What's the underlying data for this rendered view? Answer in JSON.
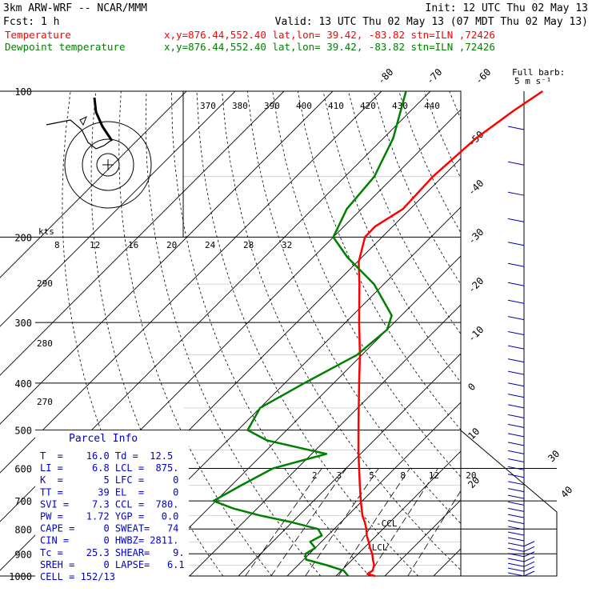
{
  "header": {
    "model": "3km ARW-WRF -- NCAR/MMM",
    "fcst": "Fcst:      1 h",
    "init": "Init: 12 UTC Thu 02 May 13",
    "valid": "Valid: 13 UTC Thu 02 May 13 (07 MDT Thu 02 May 13)",
    "temp_label": "Temperature",
    "dew_label": "Dewpoint temperature",
    "location": "x,y=876.44,552.40   lat,lon= 39.42, -83.82  stn=ILN ,72426"
  },
  "colors": {
    "temperature": "#ff0000",
    "dewpoint": "#008000",
    "axes": "#000000",
    "winds": "#0000aa",
    "parcel": "#0000cc"
  },
  "chart_data": {
    "type": "line",
    "subtype": "skew-T log-p",
    "y_scale": "log",
    "y_range_hPa": [
      1000,
      100
    ],
    "pressure_ticks": [
      "100",
      "200",
      "300",
      "400",
      "500",
      "600",
      "700",
      "800",
      "900",
      "1000"
    ],
    "temperature_ticks": [
      "-80",
      "-70",
      "-60",
      "-50",
      "-40",
      "-30",
      "-20",
      "-10",
      "0",
      "10",
      "20",
      "30",
      "40"
    ],
    "theta_labels": [
      "370",
      "380",
      "390",
      "400",
      "410",
      "420",
      "430",
      "440"
    ],
    "hodograph_speed_label": "kts",
    "hodograph_speed_ticks": [
      "8",
      "12",
      "16",
      "20",
      "24",
      "28",
      "32"
    ],
    "theta_side_labels": [
      "290",
      "280",
      "270"
    ],
    "mixing_ratio_labels": [
      "2",
      "3",
      "5",
      "8",
      "12",
      "20"
    ],
    "level_labels": [
      "CCL",
      "LCL"
    ],
    "wind_key": [
      "Full barb:",
      "5 m s⁻¹"
    ],
    "series": [
      {
        "name": "Temperature",
        "color": "#ff0000",
        "points": [
          [
            1000,
            18.0
          ],
          [
            990,
            16.0
          ],
          [
            975,
            16.4
          ],
          [
            950,
            15.6
          ],
          [
            925,
            14.2
          ],
          [
            900,
            12.9
          ],
          [
            875,
            11.2
          ],
          [
            850,
            9.7
          ],
          [
            825,
            8.0
          ],
          [
            800,
            6.6
          ],
          [
            775,
            4.9
          ],
          [
            750,
            3.0
          ],
          [
            700,
            -0.3
          ],
          [
            650,
            -3.7
          ],
          [
            600,
            -7.3
          ],
          [
            550,
            -11.2
          ],
          [
            500,
            -15.3
          ],
          [
            450,
            -19.8
          ],
          [
            400,
            -24.8
          ],
          [
            350,
            -30.4
          ],
          [
            300,
            -37.2
          ],
          [
            250,
            -45.0
          ],
          [
            225,
            -49.7
          ],
          [
            200,
            -53.5
          ],
          [
            190,
            -53.6
          ],
          [
            175,
            -51.5
          ],
          [
            150,
            -52.0
          ],
          [
            125,
            -51.0
          ],
          [
            110,
            -49.0
          ],
          [
            100,
            -47.0
          ]
        ]
      },
      {
        "name": "Dewpoint temperature",
        "color": "#008000",
        "points": [
          [
            1000,
            12.5
          ],
          [
            975,
            10.5
          ],
          [
            950,
            5.9
          ],
          [
            925,
            0.5
          ],
          [
            900,
            -0.8
          ],
          [
            875,
            0.0
          ],
          [
            850,
            -2.3
          ],
          [
            825,
            -1.2
          ],
          [
            800,
            -3.3
          ],
          [
            775,
            -10.0
          ],
          [
            750,
            -18.0
          ],
          [
            725,
            -25.0
          ],
          [
            700,
            -30.5
          ],
          [
            650,
            -28.0
          ],
          [
            600,
            -25.0
          ],
          [
            560,
            -17.0
          ],
          [
            525,
            -32.0
          ],
          [
            500,
            -38.0
          ],
          [
            450,
            -40.0
          ],
          [
            400,
            -36.0
          ],
          [
            350,
            -31.0
          ],
          [
            310,
            -30.0
          ],
          [
            290,
            -32.0
          ],
          [
            250,
            -42.0
          ],
          [
            220,
            -53.0
          ],
          [
            200,
            -60.0
          ],
          [
            175,
            -63.0
          ],
          [
            150,
            -64.0
          ],
          [
            125,
            -68.0
          ],
          [
            110,
            -72.0
          ],
          [
            100,
            -75.0
          ]
        ]
      }
    ]
  },
  "parcel_info": {
    "title": "Parcel Info",
    "rows": [
      "T  =    16.0 Td =  12.5",
      "LI =     6.8 LCL =  875.",
      "K  =       5 LFC =     0",
      "TT =      39 EL  =     0",
      "SVI =    7.3 CCL =  780.",
      "PW =    1.72 YGP =   0.0",
      "CAPE =     0 SWEAT=   74",
      "CIN =      0 HWBZ= 2811.",
      "Tc =    25.3 SHEAR=    9.",
      "SREH =     0 LAPSE=   6.1",
      "CELL = 152/13"
    ]
  }
}
